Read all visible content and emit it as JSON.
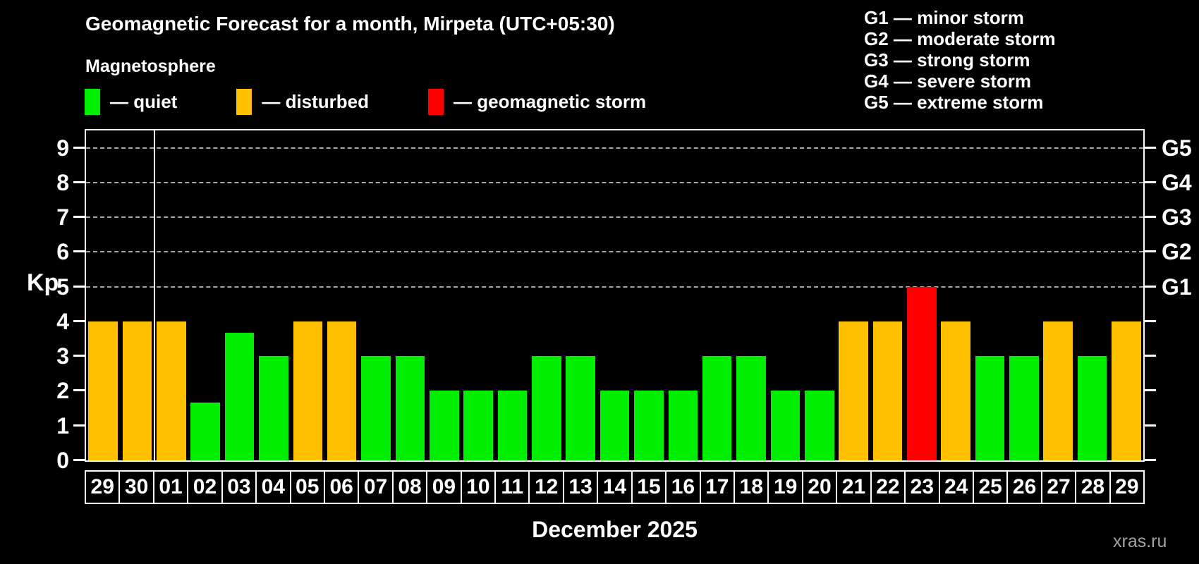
{
  "title": "Geomagnetic Forecast for a month, Mirpeta (UTC+05:30)",
  "subtitle": "Magnetosphere",
  "legend": {
    "items": [
      {
        "key": "quiet",
        "label": "— quiet",
        "color": "#00ee00"
      },
      {
        "key": "disturbed",
        "label": "— disturbed",
        "color": "#ffc100"
      },
      {
        "key": "storm",
        "label": "— geomagnetic storm",
        "color": "#ff0000"
      }
    ]
  },
  "g_legend": [
    "G1 — minor storm",
    "G2 — moderate storm",
    "G3 — strong storm",
    "G4 — severe storm",
    "G5 — extreme storm"
  ],
  "chart_data": {
    "type": "bar",
    "title": "Geomagnetic Forecast for a month, Mirpeta (UTC+05:30)",
    "categories": [
      "29",
      "30",
      "01",
      "02",
      "03",
      "04",
      "05",
      "06",
      "07",
      "08",
      "09",
      "10",
      "11",
      "12",
      "13",
      "14",
      "15",
      "16",
      "17",
      "18",
      "19",
      "20",
      "21",
      "22",
      "23",
      "24",
      "25",
      "26",
      "27",
      "28",
      "29"
    ],
    "values": [
      4,
      4,
      4,
      1.67,
      3.67,
      3,
      4,
      4,
      3,
      3,
      2,
      2,
      2,
      3,
      3,
      2,
      2,
      2,
      3,
      3,
      2,
      2,
      4,
      4,
      5,
      4,
      3,
      3,
      4,
      3,
      4
    ],
    "statuses": [
      "disturbed",
      "disturbed",
      "disturbed",
      "quiet",
      "quiet",
      "quiet",
      "disturbed",
      "disturbed",
      "quiet",
      "quiet",
      "quiet",
      "quiet",
      "quiet",
      "quiet",
      "quiet",
      "quiet",
      "quiet",
      "quiet",
      "quiet",
      "quiet",
      "quiet",
      "quiet",
      "disturbed",
      "disturbed",
      "storm",
      "disturbed",
      "quiet",
      "quiet",
      "disturbed",
      "quiet",
      "disturbed"
    ],
    "colors": {
      "quiet": "#00ee00",
      "disturbed": "#ffc100",
      "storm": "#ff0000"
    },
    "ylabel": "Kp",
    "xlabel": "December 2025",
    "ylim": [
      0,
      9.5
    ],
    "yticks": [
      0,
      1,
      2,
      3,
      4,
      5,
      6,
      7,
      8,
      9
    ],
    "gridlines_at": [
      5,
      6,
      7,
      8,
      9
    ],
    "grid_style": "dashed horizontal, gray, only at Kp 5-9",
    "right_axis_labels": [
      {
        "kp": 5,
        "label": "G1"
      },
      {
        "kp": 6,
        "label": "G2"
      },
      {
        "kp": 7,
        "label": "G3"
      },
      {
        "kp": 8,
        "label": "G4"
      },
      {
        "kp": 9,
        "label": "G5"
      }
    ],
    "month_separator_after": 2,
    "legend_position": "top"
  },
  "footer": {
    "xlabel": "December 2025",
    "watermark": "xras.ru"
  }
}
